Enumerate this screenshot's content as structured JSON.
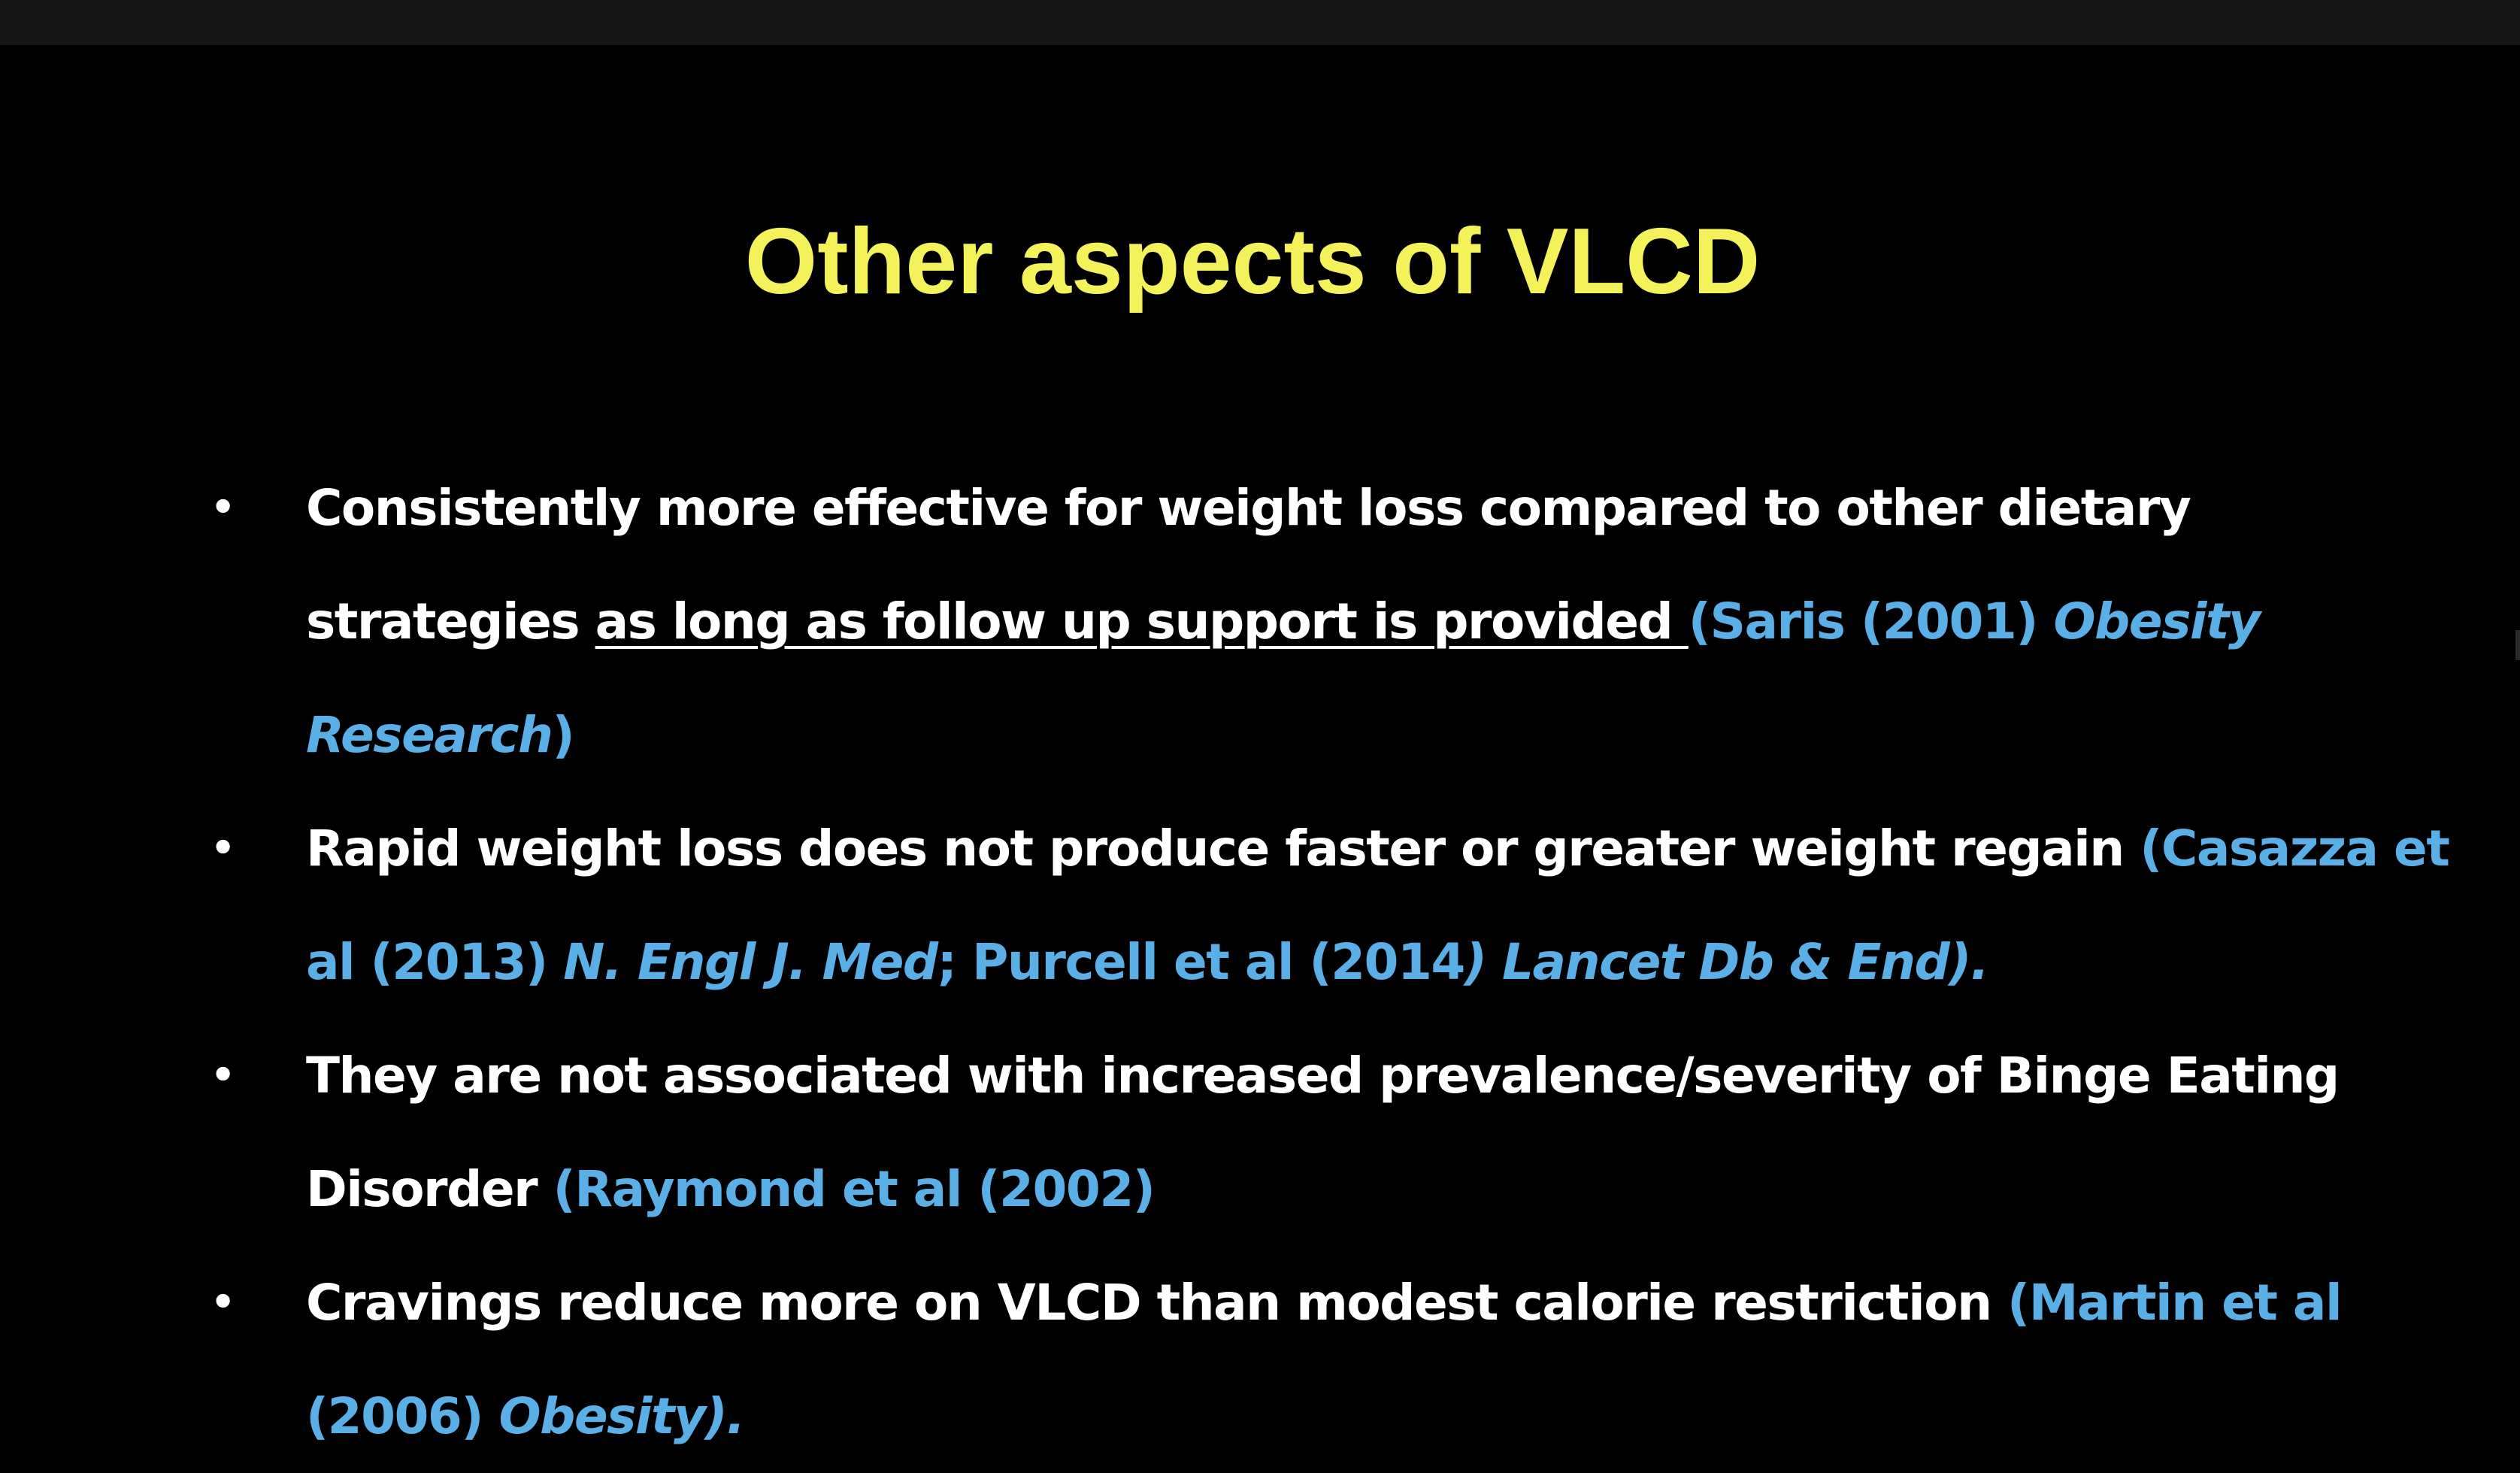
{
  "slide": {
    "title": "Other aspects of VLCD",
    "bullets": [
      {
        "text": "Consistently more effective for weight loss compared to other dietary strategies ",
        "underlined": "as long as follow up support is provided ",
        "cite_a": "(Saris (2001) ",
        "cite_b": "Obesity Research",
        "cite_c": ")"
      },
      {
        "text": "Rapid weight loss does not produce faster or greater weight regain ",
        "cite_a": "(Casazza et al (2013) ",
        "cite_b": "N. Engl J. Med",
        "cite_c": "; Purcell et al (2014",
        "cite_d": ") Lancet Db & End)."
      },
      {
        "text": "They are not associated with increased prevalence/severity of Binge Eating Disorder ",
        "cite_a": "(Raymond et al (2002)"
      },
      {
        "text": "Cravings reduce more on VLCD than modest calorie restriction ",
        "cite_a": "(Martin et al (2006) ",
        "cite_b": "Obesity)."
      }
    ]
  },
  "colors": {
    "background": "#000000",
    "title": "#f4f25a",
    "body_text": "#ffffff",
    "citation": "#5aafe6"
  }
}
